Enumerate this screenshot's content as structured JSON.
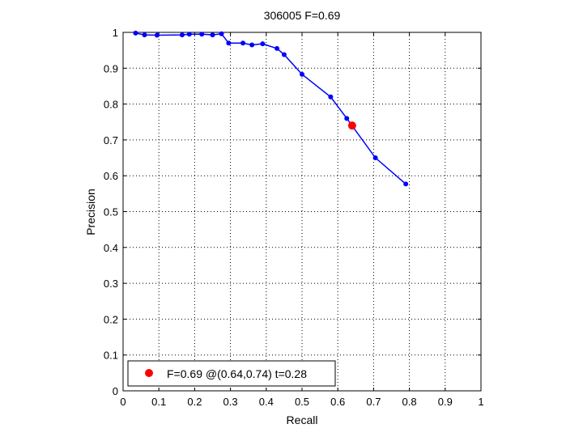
{
  "chart_data": {
    "type": "line",
    "title": "306005 F=0.69",
    "xlabel": "Recall",
    "ylabel": "Precision",
    "xlim": [
      0,
      1
    ],
    "ylim": [
      0,
      1
    ],
    "grid": true,
    "x_ticks": [
      "0",
      "0.1",
      "0.2",
      "0.3",
      "0.4",
      "0.5",
      "0.6",
      "0.7",
      "0.8",
      "0.9",
      "1"
    ],
    "y_ticks": [
      "0",
      "0.1",
      "0.2",
      "0.3",
      "0.4",
      "0.5",
      "0.6",
      "0.7",
      "0.8",
      "0.9",
      "1"
    ],
    "series": [
      {
        "color": "#0000ff",
        "x": [
          0.035,
          0.06,
          0.095,
          0.165,
          0.185,
          0.22,
          0.25,
          0.275,
          0.295,
          0.335,
          0.36,
          0.39,
          0.43,
          0.45,
          0.5,
          0.58,
          0.625,
          0.705,
          0.79
        ],
        "y": [
          0.998,
          0.993,
          0.992,
          0.993,
          0.995,
          0.995,
          0.993,
          0.996,
          0.97,
          0.97,
          0.965,
          0.968,
          0.955,
          0.938,
          0.883,
          0.82,
          0.76,
          0.65,
          0.577
        ]
      }
    ],
    "best_point": {
      "x": 0.64,
      "y": 0.74,
      "color": "#ff0000"
    },
    "legend": {
      "placement": "bottom-left",
      "label": "F=0.69 @(0.64,0.74) t=0.28"
    }
  }
}
